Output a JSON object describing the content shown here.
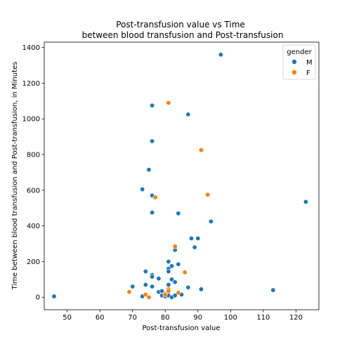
{
  "chart_data": {
    "type": "scatter",
    "title_line1": "Post-transfusion value vs Time",
    "title_line2": "between blood transfusion and Post-transfusion",
    "xlabel": "Post-transfusion value",
    "ylabel": "Time between blood transfusion and Post-transfusion, in Minutes",
    "xlim": [
      43,
      127
    ],
    "ylim": [
      -70,
      1430
    ],
    "xticks": [
      50,
      60,
      70,
      80,
      90,
      100,
      110,
      120
    ],
    "yticks": [
      0,
      200,
      400,
      600,
      800,
      1000,
      1200,
      1400
    ],
    "grid": false,
    "legend": {
      "title": "gender",
      "placement": "top-right",
      "entries": [
        {
          "label": "M",
          "color": "#1f77b4"
        },
        {
          "label": "F",
          "color": "#ff7f0e"
        }
      ]
    },
    "series": [
      {
        "name": "M",
        "color": "#1f77b4",
        "points": [
          [
            46,
            5
          ],
          [
            70,
            60
          ],
          [
            73,
            5
          ],
          [
            73,
            605
          ],
          [
            74,
            145
          ],
          [
            74,
            70
          ],
          [
            75,
            715
          ],
          [
            76,
            1075
          ],
          [
            76,
            875
          ],
          [
            76,
            570
          ],
          [
            76,
            475
          ],
          [
            76,
            125
          ],
          [
            76,
            115
          ],
          [
            76,
            60
          ],
          [
            77,
            560
          ],
          [
            78,
            105
          ],
          [
            78,
            30
          ],
          [
            79,
            35
          ],
          [
            79,
            10
          ],
          [
            80,
            20
          ],
          [
            80,
            5
          ],
          [
            81,
            200
          ],
          [
            81,
            160
          ],
          [
            81,
            145
          ],
          [
            81,
            70
          ],
          [
            81,
            30
          ],
          [
            81,
            10
          ],
          [
            82,
            175
          ],
          [
            82,
            100
          ],
          [
            82,
            0
          ],
          [
            83,
            265
          ],
          [
            83,
            85
          ],
          [
            83,
            10
          ],
          [
            84,
            185
          ],
          [
            84,
            470
          ],
          [
            85,
            15
          ],
          [
            87,
            1025
          ],
          [
            87,
            55
          ],
          [
            88,
            330
          ],
          [
            89,
            280
          ],
          [
            90,
            330
          ],
          [
            91,
            45
          ],
          [
            94,
            425
          ],
          [
            97,
            1360
          ],
          [
            113,
            40
          ],
          [
            123,
            535
          ]
        ]
      },
      {
        "name": "F",
        "color": "#ff7f0e",
        "points": [
          [
            69,
            30
          ],
          [
            74,
            15
          ],
          [
            75,
            0
          ],
          [
            77,
            560
          ],
          [
            80,
            15
          ],
          [
            81,
            1090
          ],
          [
            81,
            45
          ],
          [
            81,
            35
          ],
          [
            83,
            285
          ],
          [
            84,
            25
          ],
          [
            86,
            140
          ],
          [
            91,
            825
          ],
          [
            93,
            575
          ]
        ]
      }
    ]
  }
}
